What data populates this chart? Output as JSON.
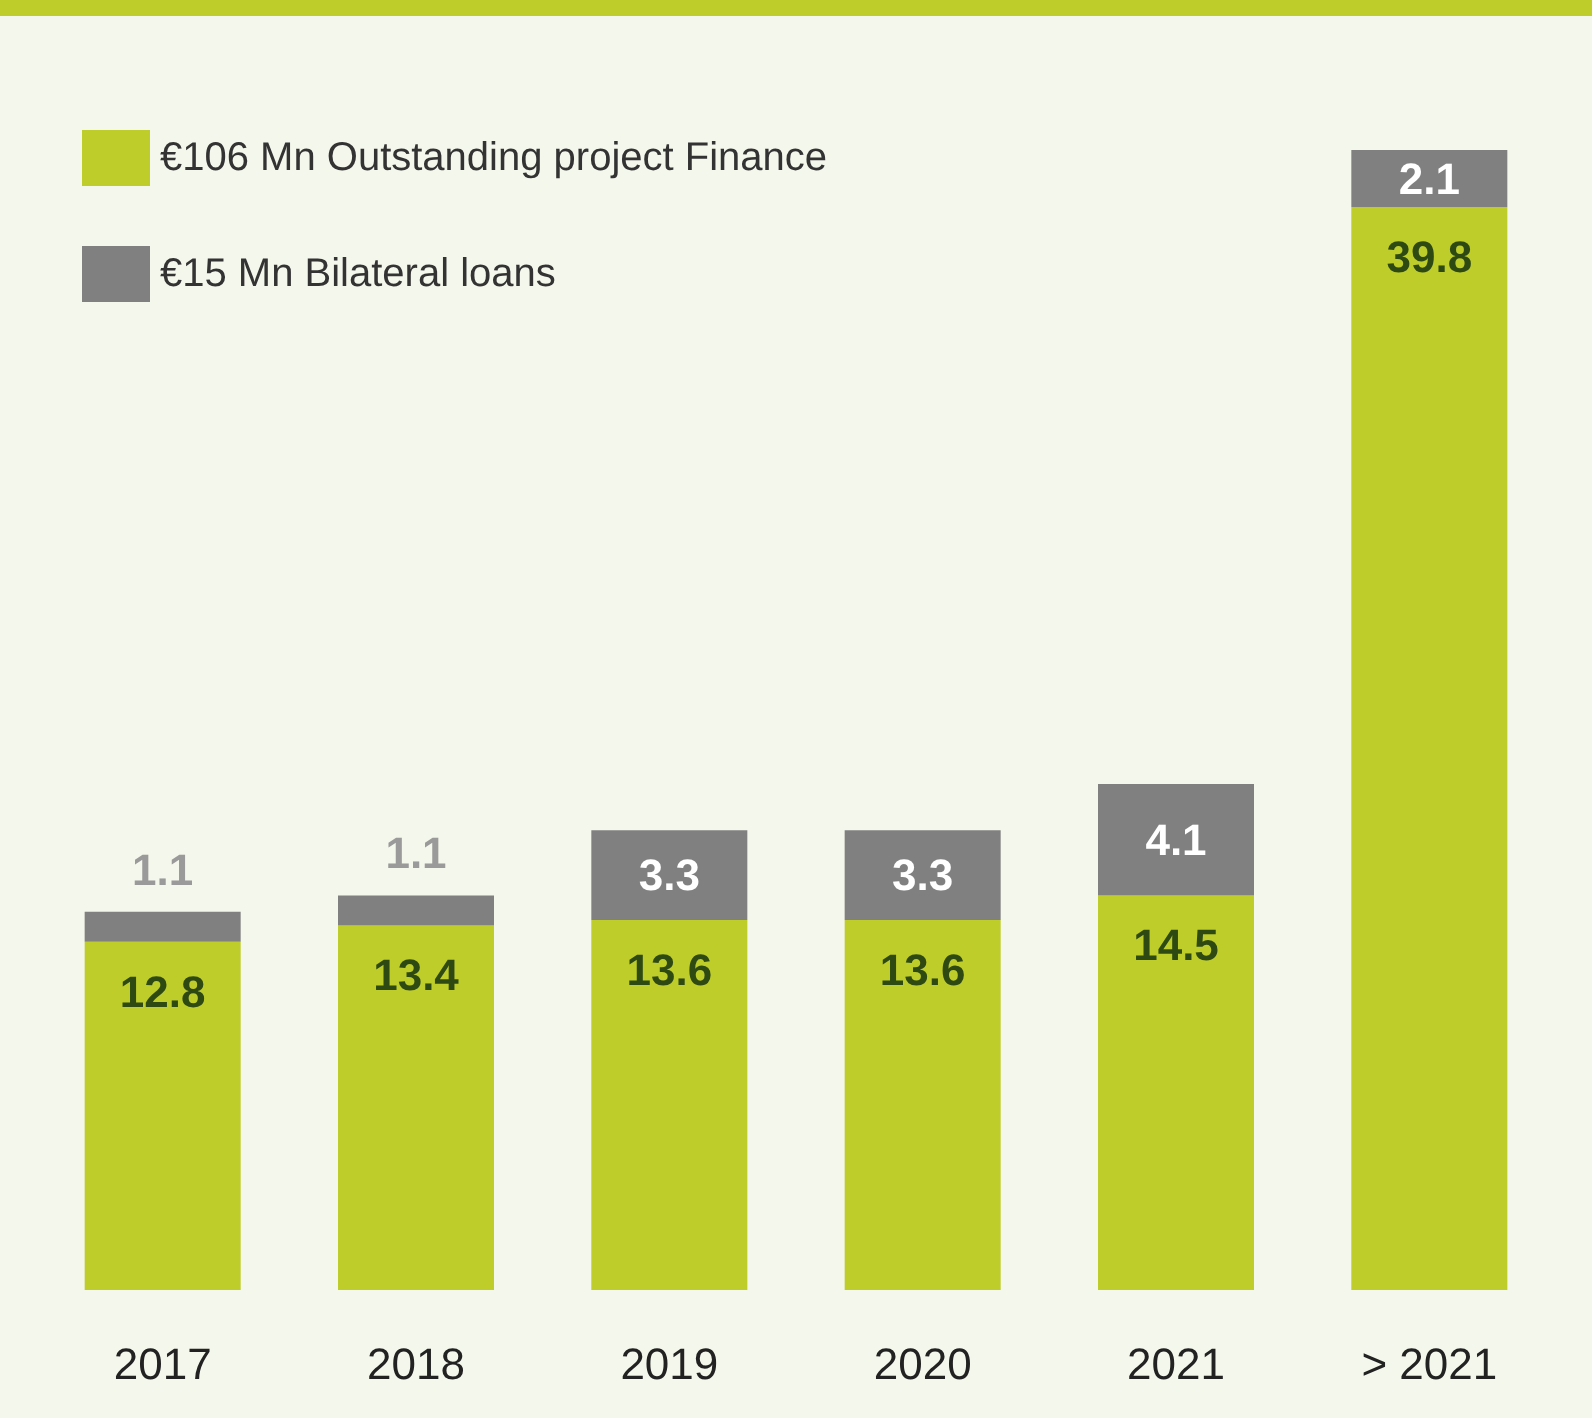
{
  "chart_data": {
    "type": "bar",
    "stacked": true,
    "categories": [
      "2017",
      "2018",
      "2019",
      "2020",
      "2021",
      "> 2021"
    ],
    "series": [
      {
        "name": "€106 Mn Outstanding project Finance",
        "color": "#bfcd2b",
        "values": [
          12.8,
          13.4,
          13.6,
          13.6,
          14.5,
          39.8
        ]
      },
      {
        "name": "€15 Mn Bilateral loans",
        "color": "#808080",
        "values": [
          1.1,
          1.1,
          3.3,
          3.3,
          4.1,
          2.1
        ]
      }
    ],
    "data_labels": true,
    "legend": "top left"
  }
}
